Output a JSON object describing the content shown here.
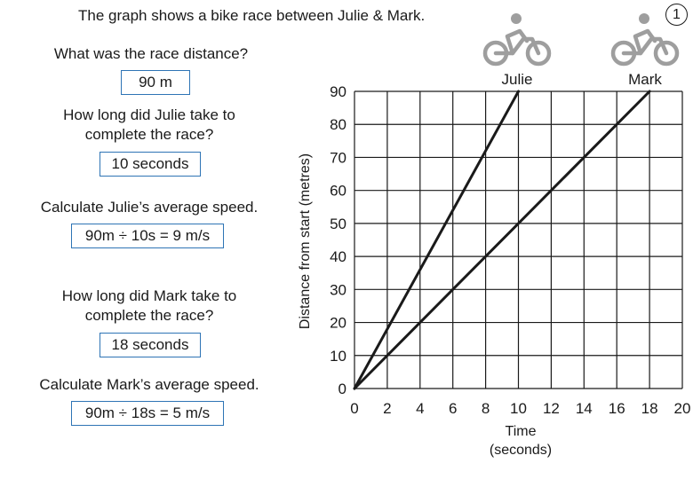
{
  "heading": "The graph shows a bike race between Julie & Mark.",
  "badge": "1",
  "questions": [
    {
      "question": "What was the race distance?",
      "answer": "90 m"
    },
    {
      "question": "How long did Julie take to complete the race?",
      "answer": "10 seconds"
    },
    {
      "question": "Calculate Julie’s average speed.",
      "answer": "90m ÷ 10s = 9 m/s"
    },
    {
      "question": "How long did Mark take to complete the race?",
      "answer": "18 seconds"
    },
    {
      "question": "Calculate Mark’s average speed.",
      "answer": "90m ÷ 18s = 5 m/s"
    }
  ],
  "riders": [
    {
      "name": "Julie",
      "icon": "bicycle-icon"
    },
    {
      "name": "Mark",
      "icon": "bicycle-icon"
    }
  ],
  "colors": {
    "accent": "#2e74b5",
    "icon": "#9e9e9e",
    "ink": "#1a1a1a"
  },
  "chart_data": {
    "type": "line",
    "title": "",
    "xlabel": "Time (seconds)",
    "ylabel": "Distance from start (metres)",
    "xlim": [
      0,
      20
    ],
    "ylim": [
      0,
      90
    ],
    "x_ticks": [
      0,
      2,
      4,
      6,
      8,
      10,
      12,
      14,
      16,
      18,
      20
    ],
    "y_ticks": [
      0,
      10,
      20,
      30,
      40,
      50,
      60,
      70,
      80,
      90
    ],
    "grid": true,
    "series": [
      {
        "name": "Julie",
        "points": [
          [
            0,
            0
          ],
          [
            10,
            90
          ]
        ]
      },
      {
        "name": "Mark",
        "points": [
          [
            0,
            0
          ],
          [
            18,
            90
          ]
        ]
      }
    ]
  }
}
